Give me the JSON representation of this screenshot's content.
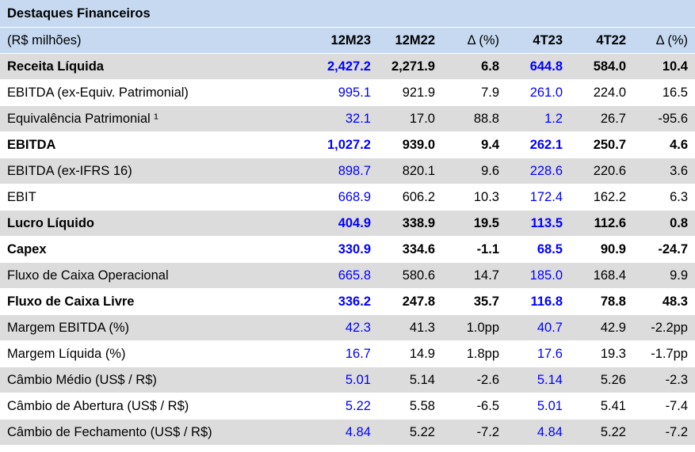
{
  "title": "Destaques Financeiros",
  "header": {
    "unit": "(R$ milhões)",
    "cols": [
      "12M23",
      "12M22",
      "Δ (%)",
      "4T23",
      "4T22",
      "Δ (%)"
    ]
  },
  "rows": [
    {
      "label": "Receita Líquida",
      "bold": true,
      "values": [
        "2,427.2",
        "2,271.9",
        "6.8",
        "644.8",
        "584.0",
        "10.4"
      ]
    },
    {
      "label": "EBITDA (ex-Equiv. Patrimonial)",
      "bold": false,
      "values": [
        "995.1",
        "921.9",
        "7.9",
        "261.0",
        "224.0",
        "16.5"
      ]
    },
    {
      "label": "Equivalência Patrimonial ¹",
      "bold": false,
      "values": [
        "32.1",
        "17.0",
        "88.8",
        "1.2",
        "26.7",
        "-95.6"
      ]
    },
    {
      "label": "EBITDA",
      "bold": true,
      "values": [
        "1,027.2",
        "939.0",
        "9.4",
        "262.1",
        "250.7",
        "4.6"
      ]
    },
    {
      "label": "EBITDA (ex-IFRS 16)",
      "bold": false,
      "values": [
        "898.7",
        "820.1",
        "9.6",
        "228.6",
        "220.6",
        "3.6"
      ]
    },
    {
      "label": "EBIT",
      "bold": false,
      "values": [
        "668.9",
        "606.2",
        "10.3",
        "172.4",
        "162.2",
        "6.3"
      ]
    },
    {
      "label": "Lucro Líquido",
      "bold": true,
      "values": [
        "404.9",
        "338.9",
        "19.5",
        "113.5",
        "112.6",
        "0.8"
      ]
    },
    {
      "label": "Capex",
      "bold": true,
      "values": [
        "330.9",
        "334.6",
        "-1.1",
        "68.5",
        "90.9",
        "-24.7"
      ]
    },
    {
      "label": "Fluxo de Caixa Operacional",
      "bold": false,
      "values": [
        "665.8",
        "580.6",
        "14.7",
        "185.0",
        "168.4",
        "9.9"
      ]
    },
    {
      "label": "Fluxo de Caixa Livre",
      "bold": true,
      "values": [
        "336.2",
        "247.8",
        "35.7",
        "116.8",
        "78.8",
        "48.3"
      ]
    },
    {
      "label": "Margem EBITDA (%)",
      "bold": false,
      "values": [
        "42.3",
        "41.3",
        "1.0pp",
        "40.7",
        "42.9",
        "-2.2pp"
      ]
    },
    {
      "label": "Margem Líquida (%)",
      "bold": false,
      "values": [
        "16.7",
        "14.9",
        "1.8pp",
        "17.6",
        "19.3",
        "-1.7pp"
      ]
    },
    {
      "label": "Câmbio Médio (US$ / R$)",
      "bold": false,
      "values": [
        "5.01",
        "5.14",
        "-2.6",
        "5.14",
        "5.26",
        "-2.3"
      ]
    },
    {
      "label": "Câmbio de Abertura (US$ / R$)",
      "bold": false,
      "values": [
        "5.22",
        "5.58",
        "-6.5",
        "5.01",
        "5.41",
        "-7.4"
      ]
    },
    {
      "label": "Câmbio de Fechamento (US$ / R$)",
      "bold": false,
      "values": [
        "4.84",
        "5.22",
        "-7.2",
        "4.84",
        "5.22",
        "-7.2"
      ]
    }
  ],
  "colors": {
    "header_bg": "#c6d9f1",
    "row_gray": "#dcdcdc",
    "current_period_text": "#0000ff"
  }
}
